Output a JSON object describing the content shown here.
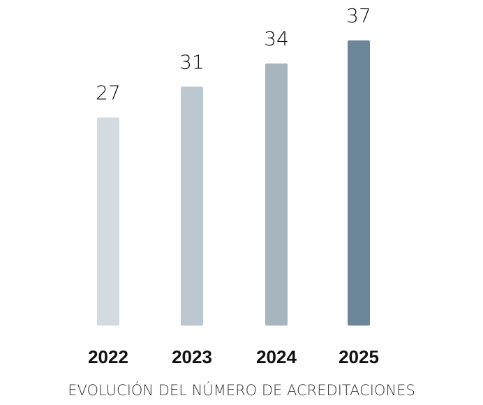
{
  "chart_data": {
    "type": "bar",
    "title": "EVOLUCIÓN DEL NÚMERO DE ACREDITACIONES",
    "categories": [
      "2022",
      "2023",
      "2024",
      "2025"
    ],
    "values": [
      27,
      31,
      34,
      37
    ],
    "colors": [
      "#d3dbe1",
      "#bcc8cf",
      "#a7b6be",
      "#6b8799"
    ]
  }
}
